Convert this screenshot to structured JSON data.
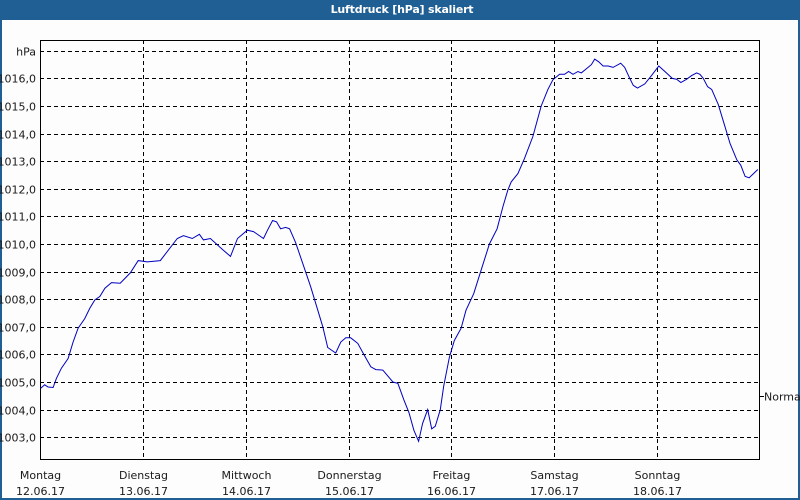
{
  "window": {
    "title": "Luftdruck [hPa] skaliert",
    "title_bar_color": "#1f5f93",
    "background_color": "#fcfdfc"
  },
  "chart_data": {
    "type": "line",
    "title": "Luftdruck [hPa] skaliert",
    "xlabel": "",
    "ylabel": "hPa",
    "ylim": [
      1002.2,
      1017.4
    ],
    "ytick_values": [
      1003,
      1004,
      1005,
      1006,
      1007,
      1008,
      1009,
      1010,
      1011,
      1012,
      1013,
      1014,
      1015,
      1016,
      1017
    ],
    "ytick_labels": [
      "1003,0",
      "1004,0",
      "1005,0",
      "1006,0",
      "1007,0",
      "1008,0",
      "1009,0",
      "1010,0",
      "1011,0",
      "1012,0",
      "1013,0",
      "1014,0",
      "1015,0",
      "1016,0",
      "hPa"
    ],
    "x_unit": "days since 12.06.17 00:00",
    "xlim": [
      0,
      7
    ],
    "categories": [
      {
        "day": "Montag",
        "date": "12.06.17"
      },
      {
        "day": "Dienstag",
        "date": "13.06.17"
      },
      {
        "day": "Mittwoch",
        "date": "14.06.17"
      },
      {
        "day": "Donnerstag",
        "date": "15.06.17"
      },
      {
        "day": "Freitag",
        "date": "16.06.17"
      },
      {
        "day": "Samstag",
        "date": "17.06.17"
      },
      {
        "day": "Sonntag",
        "date": "18.06.17"
      }
    ],
    "grid": true,
    "grid_style": "dashed",
    "line_color": "#0000c0",
    "reference_marker": {
      "label": "Normal",
      "value": 1004.5
    },
    "series": [
      {
        "name": "Luftdruck",
        "x": [
          0.007,
          0.046,
          0.078,
          0.127,
          0.159,
          0.208,
          0.273,
          0.322,
          0.37,
          0.436,
          0.484,
          0.533,
          0.582,
          0.631,
          0.695,
          0.78,
          0.877,
          0.955,
          1.043,
          1.17,
          1.335,
          1.394,
          1.481,
          1.55,
          1.589,
          1.657,
          1.774,
          1.852,
          1.92,
          2.015,
          2.076,
          2.173,
          2.212,
          2.261,
          2.3,
          2.339,
          2.388,
          2.427,
          2.485,
          2.554,
          2.632,
          2.68,
          2.749,
          2.797,
          2.875,
          2.924,
          2.973,
          3.021,
          3.09,
          3.148,
          3.216,
          3.265,
          3.333,
          3.431,
          3.48,
          3.538,
          3.587,
          3.635,
          3.681,
          3.72,
          3.769,
          3.808,
          3.843,
          3.892,
          3.925,
          3.98,
          4.028,
          4.094,
          4.142,
          4.217,
          4.288,
          4.369,
          4.444,
          4.5,
          4.548,
          4.581,
          4.646,
          4.71,
          4.792,
          4.873,
          4.938,
          4.987,
          5.052,
          5.1,
          5.139,
          5.182,
          5.231,
          5.263,
          5.312,
          5.361,
          5.393,
          5.432,
          5.475,
          5.524,
          5.572,
          5.646,
          5.685,
          5.734,
          5.767,
          5.809,
          5.88,
          5.945,
          6.016,
          6.075,
          6.147,
          6.189,
          6.231,
          6.287,
          6.335,
          6.384,
          6.416,
          6.449,
          6.491,
          6.53,
          6.595,
          6.66,
          6.708,
          6.774,
          6.813,
          6.855,
          6.894,
          6.937,
          6.979
        ],
        "values": [
          1004.77,
          1004.9,
          1004.82,
          1004.8,
          1005.13,
          1005.5,
          1005.85,
          1006.45,
          1006.95,
          1007.3,
          1007.67,
          1007.97,
          1008.1,
          1008.4,
          1008.6,
          1008.58,
          1008.95,
          1009.4,
          1009.35,
          1009.4,
          1010.2,
          1010.3,
          1010.2,
          1010.35,
          1010.15,
          1010.2,
          1009.8,
          1009.55,
          1010.2,
          1010.5,
          1010.45,
          1010.2,
          1010.5,
          1010.85,
          1010.8,
          1010.55,
          1010.6,
          1010.55,
          1010.05,
          1009.3,
          1008.45,
          1007.85,
          1007.0,
          1006.25,
          1006.05,
          1006.45,
          1006.6,
          1006.6,
          1006.4,
          1006.0,
          1005.55,
          1005.45,
          1005.43,
          1005.0,
          1004.95,
          1004.35,
          1003.9,
          1003.25,
          1002.85,
          1003.5,
          1004.0,
          1003.3,
          1003.4,
          1004.0,
          1004.85,
          1005.9,
          1006.5,
          1006.95,
          1007.6,
          1008.2,
          1009.05,
          1010.0,
          1010.55,
          1011.35,
          1011.95,
          1012.25,
          1012.55,
          1013.1,
          1013.9,
          1015.0,
          1015.6,
          1015.95,
          1016.15,
          1016.15,
          1016.25,
          1016.15,
          1016.25,
          1016.2,
          1016.35,
          1016.5,
          1016.7,
          1016.6,
          1016.45,
          1016.45,
          1016.4,
          1016.55,
          1016.4,
          1016.0,
          1015.75,
          1015.65,
          1015.8,
          1016.1,
          1016.45,
          1016.25,
          1016.0,
          1015.97,
          1015.85,
          1015.97,
          1016.1,
          1016.2,
          1016.15,
          1016.0,
          1015.7,
          1015.6,
          1015.05,
          1014.25,
          1013.65,
          1013.05,
          1012.85,
          1012.45,
          1012.4,
          1012.55,
          1012.7
        ]
      }
    ]
  }
}
